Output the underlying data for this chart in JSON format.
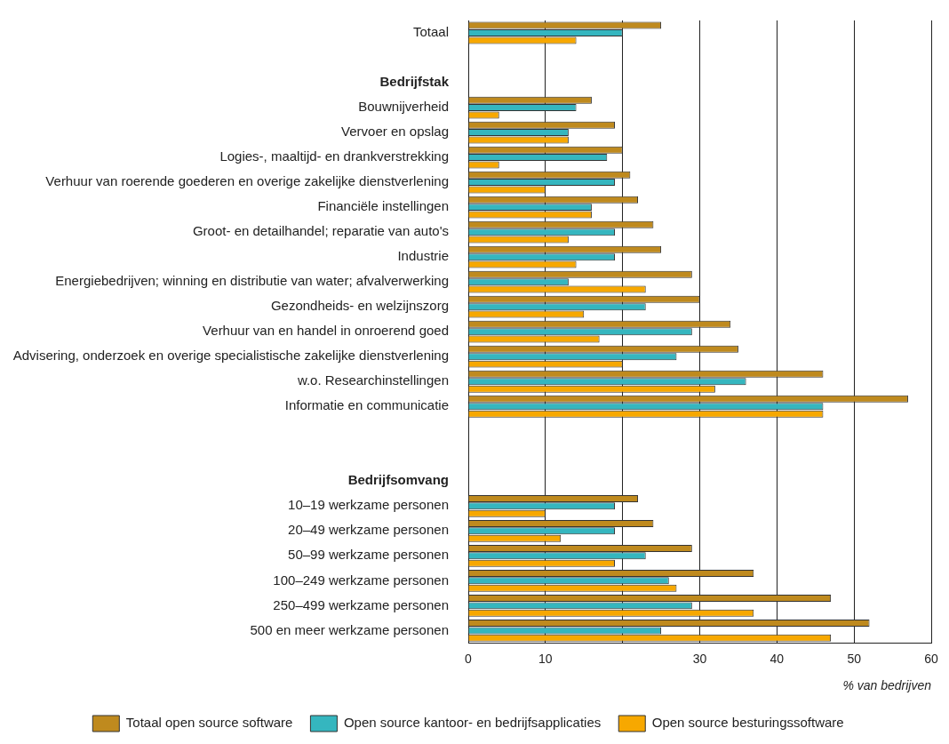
{
  "chart_data": {
    "type": "bar",
    "orientation": "horizontal",
    "xlabel": "% van bedrijven",
    "categories": [
      "Totaal",
      null,
      "Bedrijfstak",
      "Bouwnijverheid",
      "Vervoer en opslag",
      "Logies-, maaltijd- en drankverstrekking",
      "Verhuur van roerende goederen en overige zakelijke dienstverlening",
      "Financiële instellingen",
      "Groot- en detailhandel; reparatie van auto's",
      "Industrie",
      "Energiebedrijven; winning en distributie van water; afvalverwerking",
      "Gezondheids- en welzijnszorg",
      "Verhuur van en handel in onroerend goed",
      "Advisering, onderzoek en overige specialistische zakelijke dienstverlening",
      "w.o. Researchinstellingen",
      "Informatie en communicatie",
      null,
      null,
      "Bedrijfsomvang",
      "10–19 werkzame personen",
      "20–49 werkzame personen",
      "50–99 werkzame personen",
      "100–249 werkzame personen",
      "250–499 werkzame personen",
      "500 en meer werkzame personen"
    ],
    "series": [
      {
        "name": "Totaal open source software",
        "color": "#bf8a1e",
        "values": [
          25,
          null,
          null,
          16,
          19,
          20,
          21,
          22,
          24,
          25,
          29,
          30,
          34,
          35,
          46,
          57,
          null,
          null,
          null,
          22,
          24,
          29,
          37,
          47,
          52
        ]
      },
      {
        "name": "Open source kantoor- en bedrijfsapplicaties",
        "color": "#35b6bf",
        "values": [
          20,
          null,
          null,
          14,
          13,
          18,
          19,
          16,
          19,
          19,
          13,
          23,
          29,
          27,
          36,
          46,
          null,
          null,
          null,
          19,
          19,
          23,
          26,
          29,
          25
        ]
      },
      {
        "name": "Open source besturingssoftware",
        "color": "#f7a800",
        "values": [
          14,
          null,
          null,
          4,
          13,
          4,
          10,
          16,
          13,
          14,
          23,
          15,
          17,
          20,
          32,
          46,
          null,
          null,
          null,
          10,
          12,
          19,
          27,
          37,
          47
        ]
      }
    ],
    "xlim": [
      0,
      60
    ],
    "xticks": [
      0,
      10,
      {
        "value": 20,
        "label": null
      },
      30,
      40,
      50,
      60
    ],
    "grid": "x",
    "legend": "bottom"
  }
}
